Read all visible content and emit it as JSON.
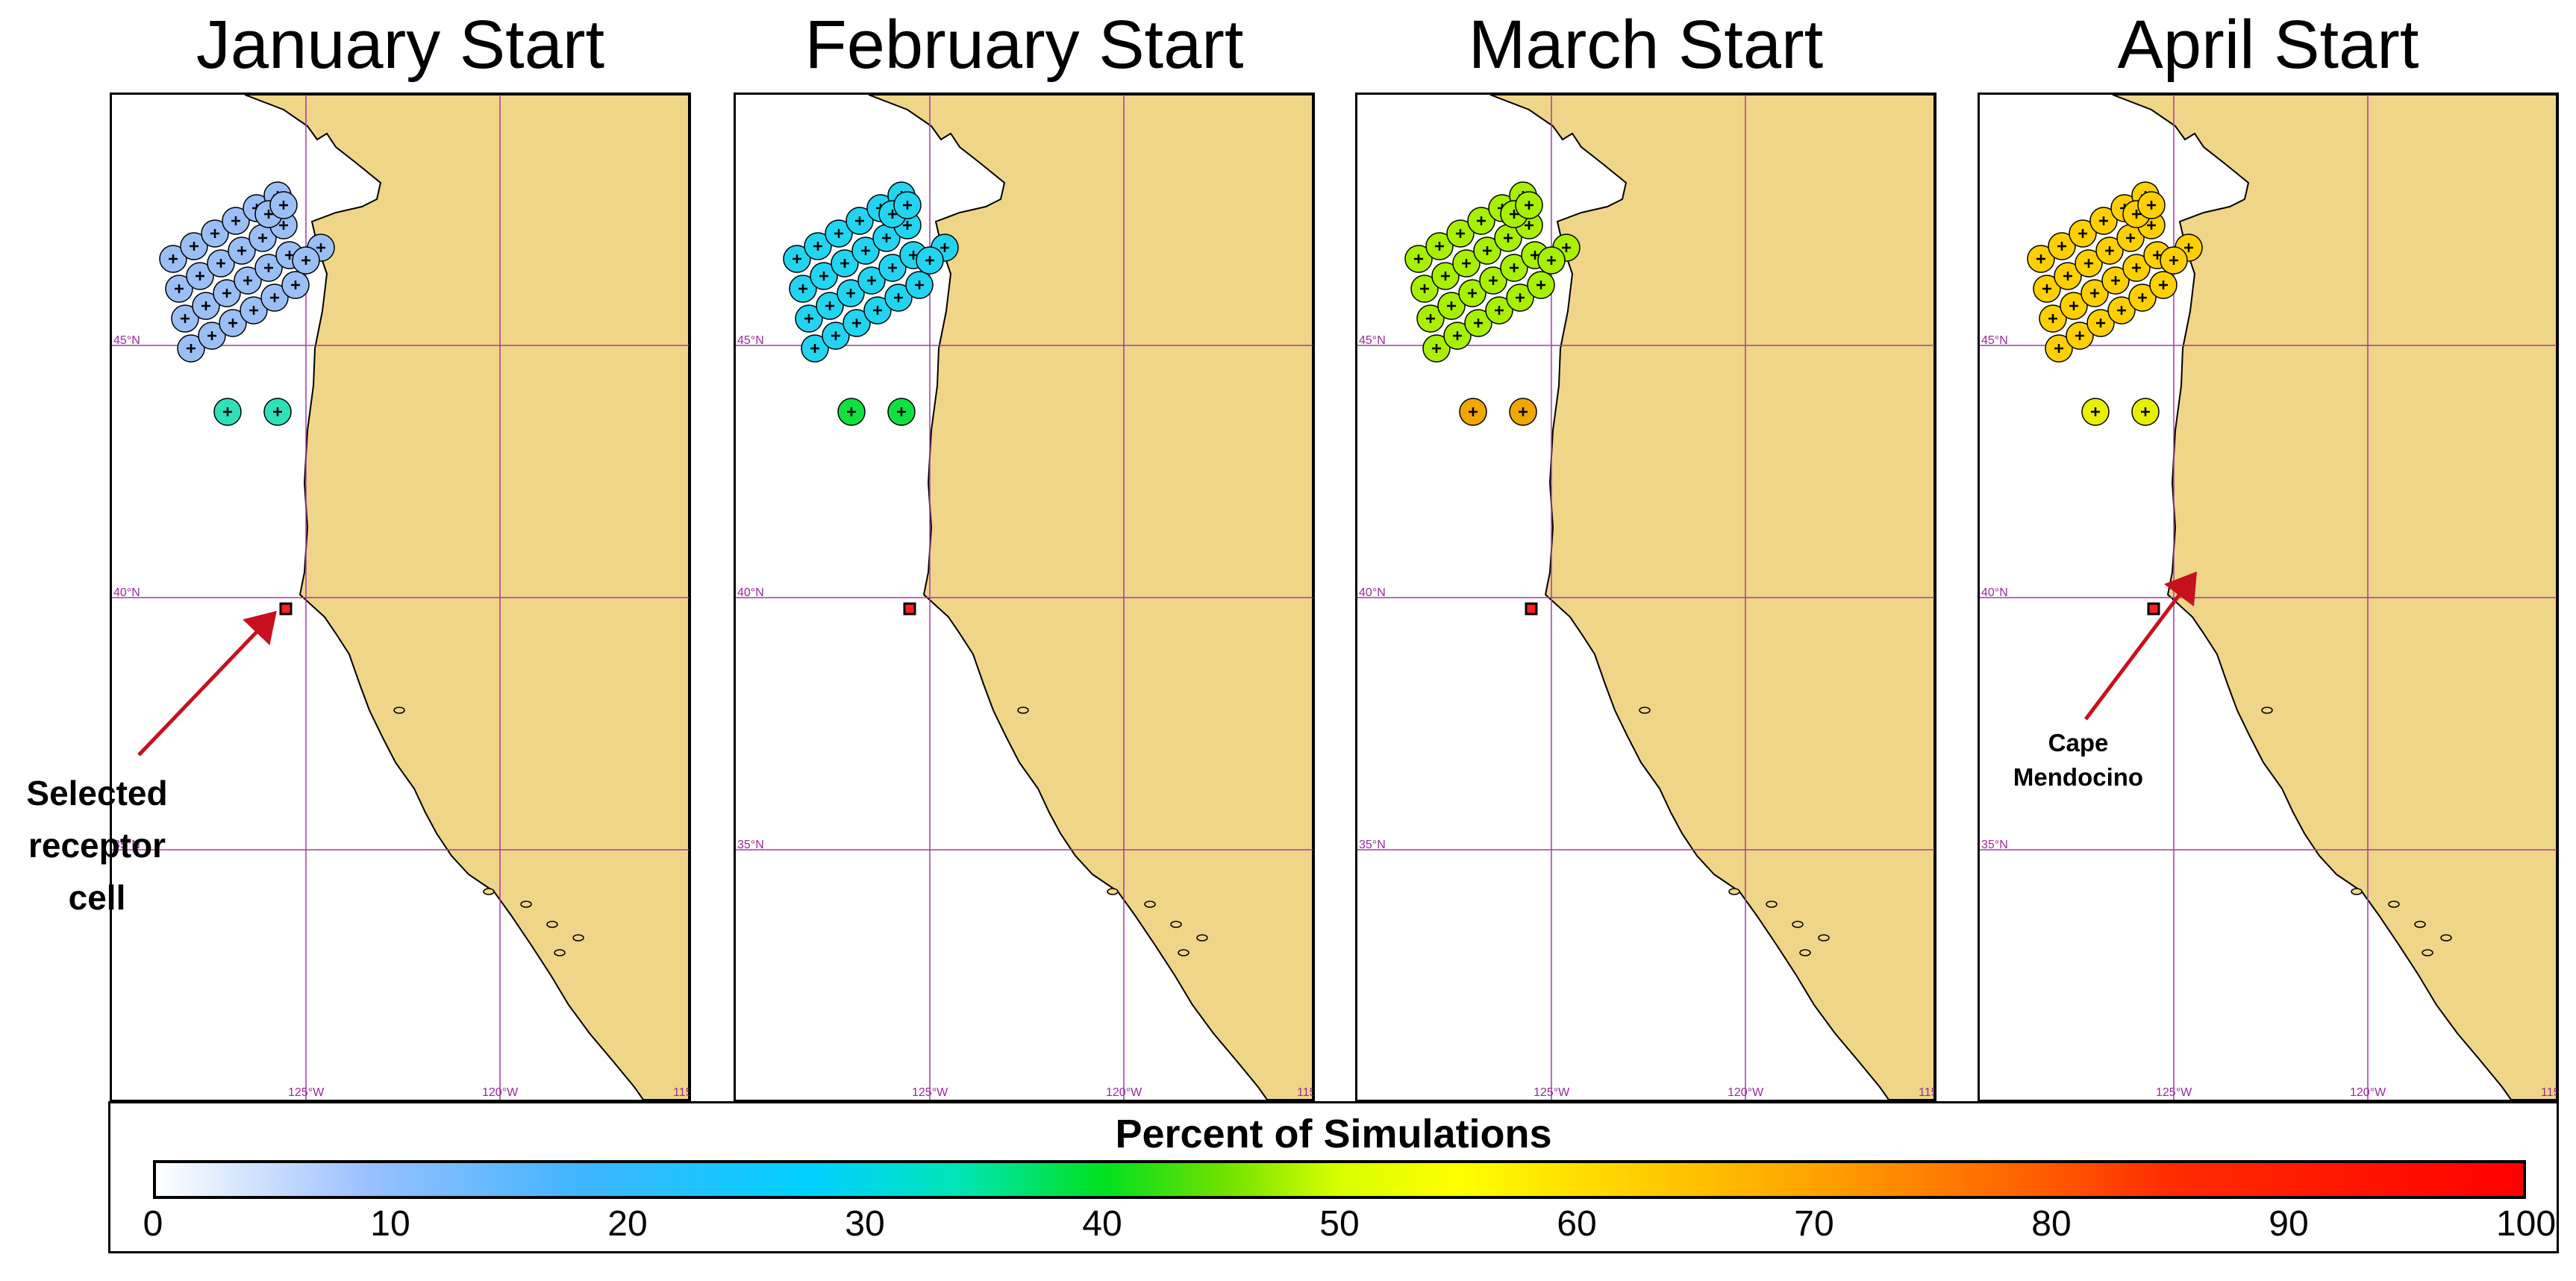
{
  "panels": [
    {
      "title": "January Start"
    },
    {
      "title": "February Start"
    },
    {
      "title": "March Start"
    },
    {
      "title": "April Start"
    }
  ],
  "grid_labels": {
    "lat": [
      "45°N",
      "40°N",
      "35°N"
    ],
    "lon": [
      "125°W",
      "120°W",
      "115"
    ]
  },
  "annotations": {
    "receptor": [
      "Selected",
      "receptor",
      "cell"
    ],
    "cape": [
      "Cape",
      "Mendocino"
    ]
  },
  "colorbar": {
    "title": "Percent of Simulations",
    "ticks": [
      "0",
      "10",
      "20",
      "30",
      "40",
      "50",
      "60",
      "70",
      "80",
      "90",
      "100"
    ],
    "range": [
      0,
      100
    ]
  },
  "colors": {
    "land": "#efd587",
    "ocean": "#ffffff",
    "grid": "#a63aa6",
    "receptor": "#ff2020",
    "arrow": "#c8101e",
    "month_fill": [
      "#99bff5",
      "#22d4ef",
      "#a8f000",
      "#ffd000"
    ],
    "upper_row_fill": [
      "#2fe0b8",
      "#10e040",
      "#f0a800",
      "#e8f000"
    ]
  },
  "icons": {
    "source_location": "circle-plus-icon",
    "receptor_cell": "square-icon",
    "annotation_arrow": "arrow-icon"
  }
}
